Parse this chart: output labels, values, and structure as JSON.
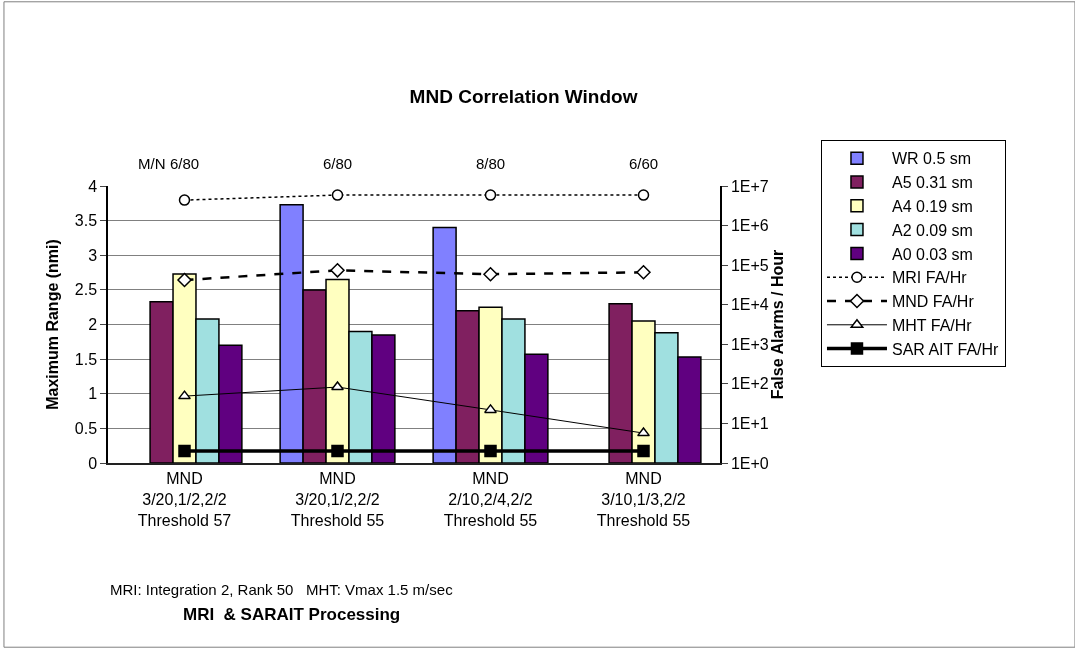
{
  "chart_data": {
    "type": "bar",
    "title": "MND Correlation Window",
    "xlabel": "MRI  & SARAIT Processing",
    "ylabel": "Maximum Range (nmi)",
    "y2label": "False Alarms / Hour",
    "categories": [
      "MND\n3/20,1/2,2/2\nThreshold 57",
      "MND\n3/20,1/2,2/2\nThreshold 55",
      "MND\n2/10,2/4,2/2\nThreshold 55",
      "MND\n3/10,1/3,2/2\nThreshold 55"
    ],
    "series": [
      {
        "name": "WR 0.5 sm",
        "color": "#8080ff",
        "values": [
          null,
          3.73,
          3.4,
          null
        ]
      },
      {
        "name": "A5 0.31 sm",
        "color": "#802060",
        "values": [
          2.33,
          2.5,
          2.2,
          2.3
        ]
      },
      {
        "name": "A4 0.19 sm",
        "color": "#ffffc0",
        "values": [
          2.73,
          2.65,
          2.25,
          2.05
        ]
      },
      {
        "name": "A2 0.09 sm",
        "color": "#a0e0e0",
        "values": [
          2.08,
          1.9,
          2.08,
          1.88
        ]
      },
      {
        "name": "A0 0.03 sm",
        "color": "#600080",
        "values": [
          1.7,
          1.85,
          1.57,
          1.53
        ]
      },
      {
        "name": "MRI FA/Hr",
        "type": "line",
        "axis": "y2",
        "color": "#000000",
        "marker": "circle",
        "line_style": "dotted",
        "values": [
          4400000,
          5900000,
          5900000,
          5900000
        ]
      },
      {
        "name": "MND FA/Hr",
        "type": "line",
        "axis": "y2",
        "color": "#000000",
        "marker": "diamond",
        "line_style": "dashed",
        "values": [
          42000,
          74000,
          59000,
          66000
        ]
      },
      {
        "name": "MHT FA/Hr",
        "type": "line",
        "axis": "y2",
        "color": "#000000",
        "marker": "triangle",
        "line_style": "solid",
        "values": [
          49,
          83,
          22,
          5.7
        ]
      },
      {
        "name": "SAR AIT FA/Hr",
        "type": "line",
        "axis": "y2",
        "color": "#000000",
        "marker": "square",
        "line_style": "solid",
        "values": [
          2,
          2,
          2,
          2
        ]
      }
    ],
    "ylim": [
      0,
      4
    ],
    "yticks": [
      0,
      {
        "value": 0.5,
        "label": "0.5"
      },
      1,
      {
        "value": 1.5,
        "label": "1.5"
      },
      2,
      {
        "value": 2.5,
        "label": "2.5"
      },
      3,
      {
        "value": 3.5,
        "label": "3.5"
      },
      4
    ],
    "log": "y2",
    "y2lim": [
      1,
      10000000
    ],
    "y2ticks": [
      {
        "value": 1,
        "label": "1E+0"
      },
      {
        "value": 10,
        "label": "1E+1"
      },
      {
        "value": 100,
        "label": "1E+2"
      },
      {
        "value": 1000,
        "label": "1E+3"
      },
      {
        "value": 10000,
        "label": "1E+4"
      },
      {
        "value": 100000,
        "label": "1E+5"
      },
      {
        "value": 1000000,
        "label": "1E+6"
      },
      {
        "value": 10000000,
        "label": "1E+7"
      }
    ],
    "grid": "y",
    "legend": "right",
    "annotations": [
      "M/N",
      "6/80",
      "6/80",
      "8/80",
      "6/60",
      "MRI: Integration 2, Rank 50   MHT: Vmax 1.5 m/sec"
    ]
  }
}
